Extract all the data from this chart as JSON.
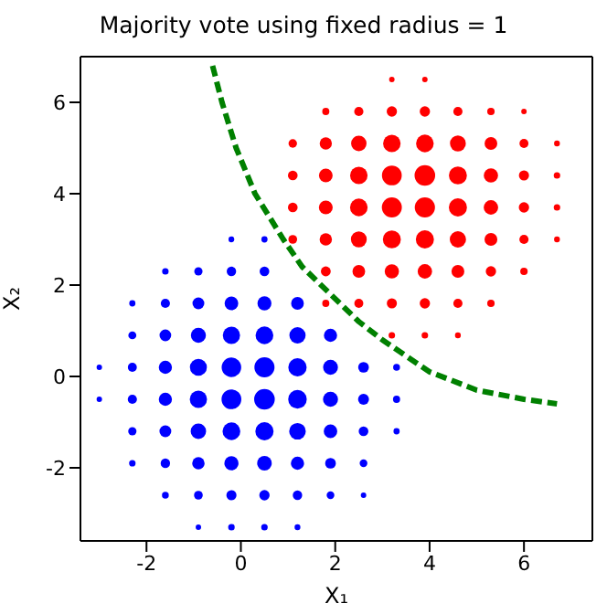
{
  "chart_data": {
    "type": "bubble",
    "title": "Majority vote using fixed radius = 1",
    "xlabel": "X₁",
    "ylabel": "X₂",
    "xlim": [
      -3.4,
      7.45
    ],
    "ylim": [
      -3.6,
      7.0
    ],
    "xticks": [
      -2,
      0,
      2,
      4,
      6
    ],
    "yticks": [
      -2,
      0,
      2,
      4,
      6
    ],
    "series": [
      {
        "color": "#0000ff",
        "x": [
          -0.9,
          -0.2,
          0.5,
          1.2,
          -1.6,
          -0.9,
          -0.2,
          0.5,
          1.2,
          1.9,
          2.6,
          -2.3,
          -1.6,
          -0.9,
          -0.2,
          0.5,
          1.2,
          1.9,
          2.6,
          -2.3,
          -1.6,
          -0.9,
          -0.2,
          0.5,
          1.2,
          1.9,
          2.6,
          3.3,
          -3,
          -2.3,
          -1.6,
          -0.9,
          -0.2,
          0.5,
          1.2,
          1.9,
          2.6,
          3.3,
          -3,
          -2.3,
          -1.6,
          -0.9,
          -0.2,
          0.5,
          1.2,
          1.9,
          2.6,
          3.3,
          -2.3,
          -1.6,
          -0.9,
          -0.2,
          0.5,
          1.2,
          1.9,
          -2.3,
          -1.6,
          -0.9,
          -0.2,
          0.5,
          1.2,
          -1.6,
          -0.9,
          -0.2,
          0.5,
          -0.2,
          0.5
        ],
        "values": [
          -3.3,
          -3.3,
          -3.3,
          -3.3,
          -2.6,
          -2.6,
          -2.6,
          -2.6,
          -2.6,
          -2.6,
          -2.6,
          -1.9,
          -1.9,
          -1.9,
          -1.9,
          -1.9,
          -1.9,
          -1.9,
          -1.9,
          -1.2,
          -1.2,
          -1.2,
          -1.2,
          -1.2,
          -1.2,
          -1.2,
          -1.2,
          -1.2,
          -0.5,
          -0.5,
          -0.5,
          -0.5,
          -0.5,
          -0.5,
          -0.5,
          -0.5,
          -0.5,
          -0.5,
          0.2,
          0.2,
          0.2,
          0.2,
          0.2,
          0.2,
          0.2,
          0.2,
          0.2,
          0.2,
          0.9,
          0.9,
          0.9,
          0.9,
          0.9,
          0.9,
          0.9,
          1.6,
          1.6,
          1.6,
          1.6,
          1.6,
          1.6,
          2.3,
          2.3,
          2.3,
          2.3,
          3.0,
          3.0
        ],
        "sizes": [
          0.07,
          0.1,
          0.1,
          0.08,
          0.11,
          0.18,
          0.24,
          0.25,
          0.21,
          0.14,
          0.07,
          0.1,
          0.21,
          0.36,
          0.47,
          0.5,
          0.41,
          0.27,
          0.14,
          0.16,
          0.33,
          0.56,
          0.74,
          0.78,
          0.65,
          0.43,
          0.22,
          0.09,
          0.07,
          0.2,
          0.41,
          0.7,
          0.92,
          1,
          0.81,
          0.53,
          0.28,
          0.12,
          0.07,
          0.19,
          0.41,
          0.68,
          0.9,
          0.95,
          0.79,
          0.52,
          0.27,
          0.11,
          0.15,
          0.32,
          0.53,
          0.7,
          0.74,
          0.62,
          0.41,
          0.09,
          0.2,
          0.33,
          0.44,
          0.46,
          0.38,
          0.1,
          0.16,
          0.21,
          0.22,
          0.08,
          0.09
        ]
      },
      {
        "color": "#ff0000",
        "x": [
          3.2,
          3.9,
          4.6,
          1.8,
          2.5,
          3.2,
          3.9,
          4.6,
          5.3,
          1.8,
          2.5,
          3.2,
          3.9,
          4.6,
          5.3,
          6.0,
          1.1,
          1.8,
          2.5,
          3.2,
          3.9,
          4.6,
          5.3,
          6.0,
          6.7,
          1.1,
          1.8,
          2.5,
          3.2,
          3.9,
          4.6,
          5.3,
          6.0,
          6.7,
          1.1,
          1.8,
          2.5,
          3.2,
          3.9,
          4.6,
          5.3,
          6.0,
          6.7,
          1.1,
          1.8,
          2.5,
          3.2,
          3.9,
          4.6,
          5.3,
          6.0,
          6.7,
          1.8,
          2.5,
          3.2,
          3.9,
          4.6,
          5.3,
          6.0,
          3.2,
          3.9
        ],
        "values": [
          0.9,
          0.9,
          0.9,
          1.6,
          1.6,
          1.6,
          1.6,
          1.6,
          1.6,
          2.3,
          2.3,
          2.3,
          2.3,
          2.3,
          2.3,
          2.3,
          3.0,
          3.0,
          3.0,
          3.0,
          3.0,
          3.0,
          3.0,
          3.0,
          3.0,
          3.7,
          3.7,
          3.7,
          3.7,
          3.7,
          3.7,
          3.7,
          3.7,
          3.7,
          4.4,
          4.4,
          4.4,
          4.4,
          4.4,
          4.4,
          4.4,
          4.4,
          4.4,
          5.1,
          5.1,
          5.1,
          5.1,
          5.1,
          5.1,
          5.1,
          5.1,
          5.1,
          5.8,
          5.8,
          5.8,
          5.8,
          5.8,
          5.8,
          5.8,
          6.5,
          6.5
        ],
        "sizes": [
          0.1,
          0.1,
          0.08,
          0.12,
          0.19,
          0.24,
          0.25,
          0.2,
          0.13,
          0.23,
          0.38,
          0.48,
          0.49,
          0.39,
          0.25,
          0.13,
          0.18,
          0.36,
          0.59,
          0.76,
          0.77,
          0.62,
          0.39,
          0.2,
          0.08,
          0.22,
          0.45,
          0.73,
          0.94,
          0.96,
          0.77,
          0.49,
          0.25,
          0.1,
          0.22,
          0.44,
          0.72,
          0.92,
          1,
          0.76,
          0.48,
          0.24,
          0.1,
          0.17,
          0.35,
          0.56,
          0.72,
          0.73,
          0.59,
          0.38,
          0.19,
          0.08,
          0.12,
          0.2,
          0.25,
          0.25,
          0.2,
          0.13,
          0.07,
          0.07,
          0.07
        ]
      },
      {
        "type": "line",
        "color": "#008000",
        "line_style": "dashed",
        "x": [
          -0.6,
          -0.4,
          -0.1,
          0.3,
          0.9,
          1.3,
          1.9,
          2.5,
          3.0,
          4.0,
          5.0,
          6.0,
          6.7
        ],
        "values": [
          6.8,
          6.0,
          5.0,
          4.0,
          3.0,
          2.4,
          1.8,
          1.2,
          0.8,
          0.1,
          -0.3,
          -0.5,
          -0.6
        ]
      }
    ]
  }
}
